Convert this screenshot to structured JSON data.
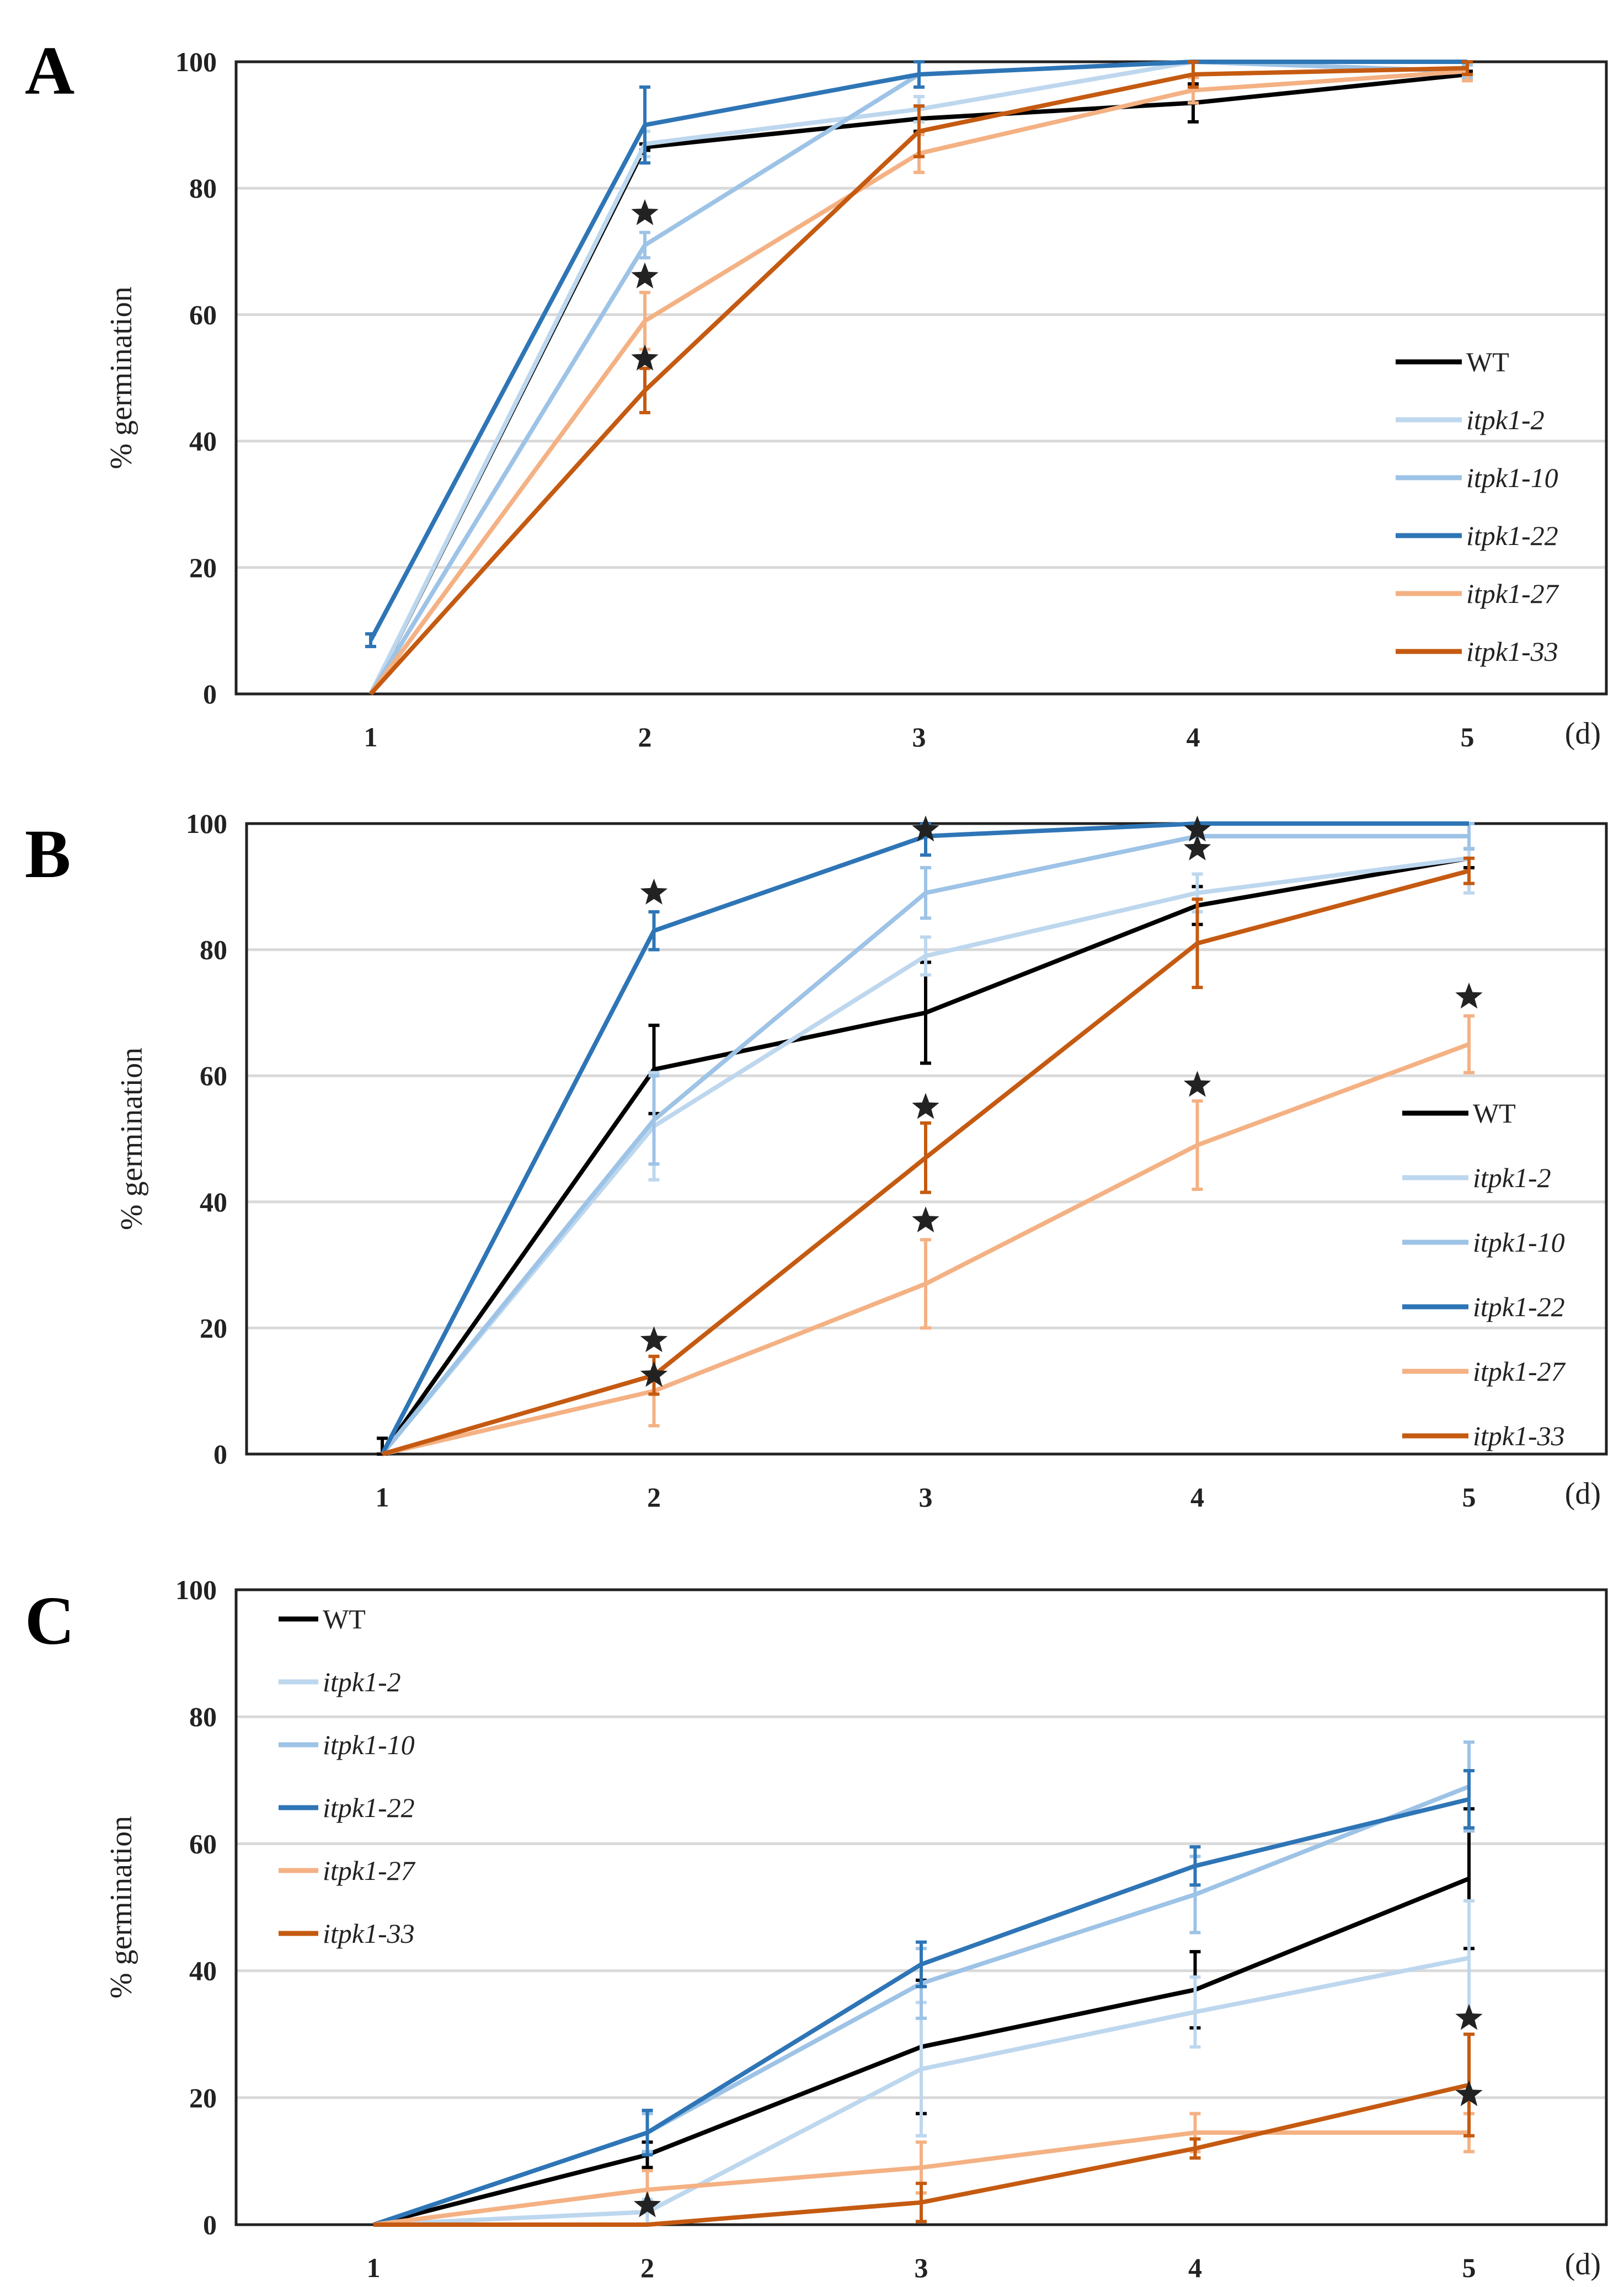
{
  "colors": {
    "WT": "#000000",
    "itpk1-2": "#bdd7ee",
    "itpk1-10": "#9dc3e6",
    "itpk1-22": "#2e75b6",
    "itpk1-27": "#f4b183",
    "itpk1-33": "#c55a11",
    "grid": "#d9d9d9",
    "star": "#222222"
  },
  "chart_data": [
    {
      "panel": "A",
      "type": "line",
      "xlabel": "(d)",
      "ylabel": "% germination",
      "x": [
        1,
        2,
        3,
        4,
        5
      ],
      "ylim": [
        0,
        100
      ],
      "yticks": [
        0,
        20,
        40,
        60,
        80,
        100
      ],
      "grid": true,
      "legend": "right",
      "series": [
        {
          "name": "WT",
          "values": [
            0,
            86.5,
            91,
            93.5,
            98
          ],
          "err": [
            0,
            0.5,
            2,
            3,
            0.5
          ]
        },
        {
          "name": "itpk1-2",
          "values": [
            0,
            87,
            92.5,
            100,
            98.5
          ],
          "err": [
            0,
            2,
            2,
            0,
            1
          ]
        },
        {
          "name": "itpk1-10",
          "values": [
            0,
            71,
            98,
            100,
            98.5
          ],
          "err": [
            0,
            2,
            2,
            0,
            1
          ]
        },
        {
          "name": "itpk1-22",
          "values": [
            8.5,
            90,
            98,
            100,
            100
          ],
          "err": [
            1,
            6,
            2,
            0,
            0
          ]
        },
        {
          "name": "itpk1-27",
          "values": [
            0,
            59,
            85.5,
            95.5,
            98.5
          ],
          "err": [
            0,
            4.5,
            3,
            2,
            1.5
          ]
        },
        {
          "name": "itpk1-33",
          "values": [
            0,
            48,
            89,
            98,
            99
          ],
          "err": [
            0,
            3.5,
            4,
            2,
            1
          ]
        }
      ],
      "significance_stars": [
        [
          2,
          76
        ],
        [
          2,
          66
        ],
        [
          2,
          53
        ]
      ]
    },
    {
      "panel": "B",
      "type": "line",
      "xlabel": "(d)",
      "ylabel": "% germination",
      "x": [
        1,
        2,
        3,
        4,
        5
      ],
      "ylim": [
        0,
        100
      ],
      "yticks": [
        0,
        20,
        40,
        60,
        80,
        100
      ],
      "grid": true,
      "legend": "right",
      "series": [
        {
          "name": "WT",
          "values": [
            0,
            61,
            70,
            87,
            94.5
          ],
          "err": [
            2.5,
            7,
            8,
            3,
            1.5
          ]
        },
        {
          "name": "itpk1-2",
          "values": [
            0,
            52,
            79,
            89,
            94.5
          ],
          "err": [
            0,
            8.5,
            3,
            3,
            5.5
          ]
        },
        {
          "name": "itpk1-10",
          "values": [
            0,
            53,
            89,
            98,
            98
          ],
          "err": [
            0,
            7,
            4,
            2,
            2
          ]
        },
        {
          "name": "itpk1-22",
          "values": [
            0,
            83,
            98,
            100,
            100
          ],
          "err": [
            0,
            3,
            3,
            0,
            0
          ]
        },
        {
          "name": "itpk1-27",
          "values": [
            0,
            10,
            27,
            49,
            65
          ],
          "err": [
            0,
            5.5,
            7,
            7,
            4.5
          ]
        },
        {
          "name": "itpk1-33",
          "values": [
            0,
            12.5,
            47,
            81,
            92.5
          ],
          "err": [
            0,
            3,
            5.5,
            7,
            2
          ]
        }
      ],
      "significance_stars": [
        [
          2,
          89
        ],
        [
          2,
          18
        ],
        [
          2,
          12.5
        ],
        [
          3,
          99
        ],
        [
          3,
          55
        ],
        [
          3,
          37
        ],
        [
          4,
          99
        ],
        [
          4,
          96
        ],
        [
          4,
          58.5
        ],
        [
          5,
          72.5
        ]
      ]
    },
    {
      "panel": "C",
      "type": "line",
      "xlabel": "(d)",
      "ylabel": "% germination",
      "x": [
        1,
        2,
        3,
        4,
        5
      ],
      "ylim": [
        0,
        100
      ],
      "yticks": [
        0,
        20,
        40,
        60,
        80,
        100
      ],
      "grid": true,
      "legend": "top-left",
      "series": [
        {
          "name": "WT",
          "values": [
            0,
            11,
            28,
            37,
            54.5
          ],
          "err": [
            0,
            2,
            10.5,
            6,
            11
          ]
        },
        {
          "name": "itpk1-2",
          "values": [
            0,
            2,
            24.5,
            33.5,
            42
          ],
          "err": [
            0,
            2,
            10.5,
            5.5,
            9
          ]
        },
        {
          "name": "itpk1-10",
          "values": [
            0,
            14.5,
            38,
            52,
            69
          ],
          "err": [
            0,
            3,
            5.5,
            6,
            7
          ]
        },
        {
          "name": "itpk1-22",
          "values": [
            0,
            14.5,
            41,
            56.5,
            67
          ],
          "err": [
            0,
            3.5,
            3.5,
            3,
            4.5
          ]
        },
        {
          "name": "itpk1-27",
          "values": [
            0,
            5.5,
            9,
            14.5,
            14.5
          ],
          "err": [
            0,
            3,
            4,
            3,
            3
          ]
        },
        {
          "name": "itpk1-33",
          "values": [
            0,
            0,
            3.5,
            12,
            22
          ],
          "err": [
            0,
            0,
            3,
            1.5,
            8
          ]
        }
      ],
      "significance_stars": [
        [
          2,
          3
        ],
        [
          5,
          32.5
        ],
        [
          5,
          20.5
        ]
      ]
    }
  ]
}
